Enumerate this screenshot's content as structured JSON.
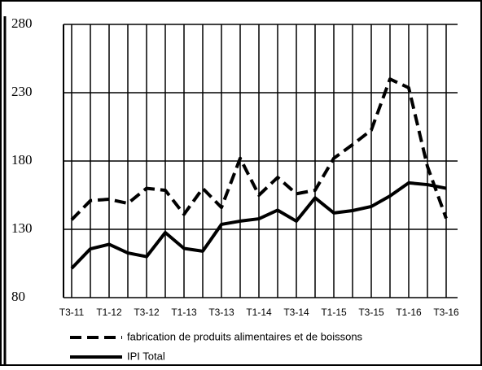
{
  "chart_data": {
    "type": "line",
    "categories": [
      "T3-11",
      null,
      "T1-12",
      null,
      "T3-12",
      null,
      "T1-13",
      null,
      "T3-13",
      null,
      "T1-14",
      null,
      "T3-14",
      null,
      "T1-15",
      null,
      "T3-15",
      null,
      "T1-16",
      null,
      "T3-16"
    ],
    "series": [
      {
        "name": "fabrication de produits alimentaires et de boissons",
        "color": "#000000",
        "dash": true,
        "values": [
          137,
          151,
          152,
          149,
          160,
          158.6,
          141,
          160,
          146,
          182,
          155,
          168,
          156,
          158.6,
          182,
          192,
          202.6,
          240,
          233.6,
          176,
          138
        ]
      },
      {
        "name": "IPI Total",
        "color": "#000000",
        "dash": false,
        "values": [
          101.4,
          115.7,
          119,
          112.7,
          110,
          127.6,
          116,
          114,
          133.6,
          136,
          137.7,
          144,
          136,
          153,
          142,
          143.7,
          146.7,
          154.4,
          164,
          162.7,
          160
        ]
      }
    ],
    "ylim": [
      80,
      280
    ],
    "yticks": [
      80,
      130,
      180,
      230,
      280
    ],
    "grid": true
  }
}
